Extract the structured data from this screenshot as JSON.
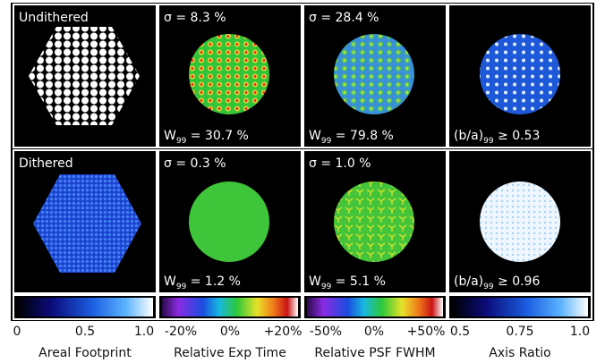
{
  "panels": [
    {
      "label": "Undithered"
    },
    {
      "sigma": "σ = 8.3 %",
      "w": {
        "symbol": "W",
        "sub": "99",
        "text": " = 30.7 %"
      }
    },
    {
      "sigma": "σ = 28.4 %",
      "w": {
        "symbol": "W",
        "sub": "99",
        "text": " = 79.8 %"
      }
    },
    {
      "w": {
        "symbol": "(b/a)",
        "sub": "99",
        "text": " ≥ 0.53"
      }
    },
    {
      "label": "Dithered"
    },
    {
      "sigma": "σ = 0.3 %",
      "w": {
        "symbol": "W",
        "sub": "99",
        "text": " = 1.2 %"
      }
    },
    {
      "sigma": "σ = 1.0 %",
      "w": {
        "symbol": "W",
        "sub": "99",
        "text": " = 5.1 %"
      }
    },
    {
      "w": {
        "symbol": "(b/a)",
        "sub": "99",
        "text": " ≥ 0.96"
      }
    }
  ],
  "colorbars": [
    {
      "title": "Areal Footprint",
      "ticks": [
        "0",
        "0.5",
        "1.0"
      ]
    },
    {
      "title": "Relative Exp Time",
      "ticks": [
        "-20%",
        "0%",
        "+20%"
      ]
    },
    {
      "title": "Relative PSF FWHM",
      "ticks": [
        "-50%",
        "0%",
        "+50%"
      ]
    },
    {
      "title": "Axis Ratio",
      "ticks": [
        "0.5",
        "0.75",
        "1.0"
      ]
    }
  ]
}
